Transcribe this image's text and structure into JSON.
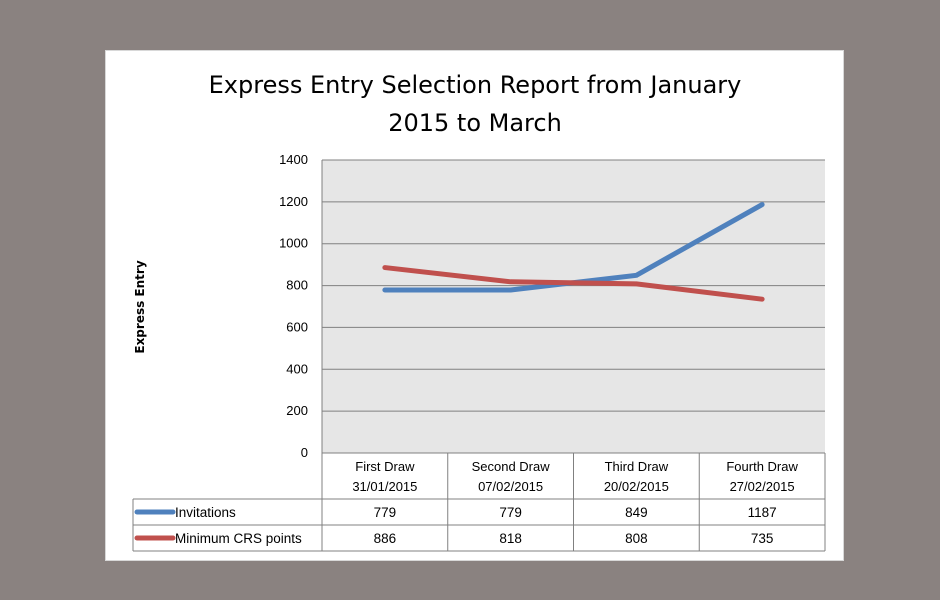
{
  "chart_data": {
    "type": "line",
    "title_lines": [
      "Express Entry Selection Report  from January",
      "2015 to March"
    ],
    "ylabel": "Express Entry",
    "xlabel": "",
    "ylim": [
      0,
      1400
    ],
    "yticks": [
      "0",
      "200",
      "400",
      "600",
      "800",
      "1000",
      "1200",
      "1400"
    ],
    "categories": [
      [
        "First Draw",
        "31/01/2015"
      ],
      [
        "Second Draw",
        "07/02/2015"
      ],
      [
        "Third Draw",
        "20/02/2015"
      ],
      [
        "Fourth Draw",
        "27/02/2015"
      ]
    ],
    "grid": true,
    "legend": "data-table",
    "series": [
      {
        "name": "Invitations",
        "color": "#4f81bd",
        "values": [
          779,
          779,
          849,
          1187
        ]
      },
      {
        "name": "Minimum CRS points",
        "color": "#c0504d",
        "values": [
          886,
          818,
          808,
          735
        ]
      }
    ]
  }
}
